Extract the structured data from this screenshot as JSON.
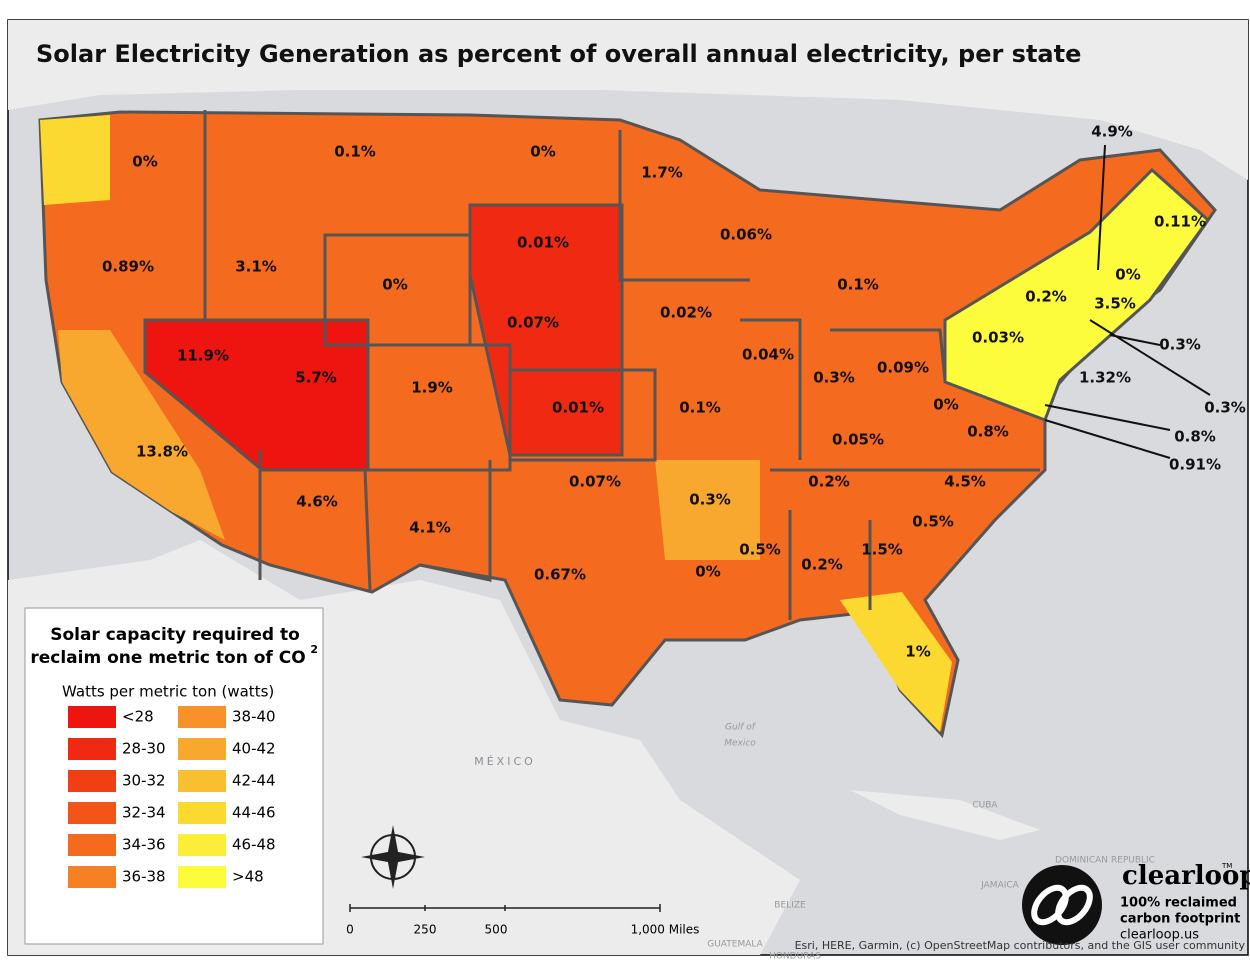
{
  "title": "Solar Electricity Generation as percent of overall annual electricity,  per state",
  "state_labels": [
    "0%",
    "0.1%",
    "0%",
    "1.7%",
    "4.9%",
    "0.11%",
    "0.01%",
    "0.06%",
    "0.89%",
    "3.1%",
    "0%",
    "0%",
    "0.2%",
    "3.5%",
    "0.1%",
    "0.07%",
    "0.02%",
    "0.03%",
    "0.3%",
    "11.9%",
    "5.7%",
    "1.9%",
    "0.04%",
    "0.3%",
    "0.09%",
    "1.32%",
    "0.3%",
    "0.01%",
    "0.1%",
    "0%",
    "0.8%",
    "0.8%",
    "0.91%",
    "13.8%",
    "0.05%",
    "0.07%",
    "0.2%",
    "4.5%",
    "4.6%",
    "0.3%",
    "0.5%",
    "4.1%",
    "1.5%",
    "0.5%",
    "0.2%",
    "0%",
    "0.67%",
    "1%"
  ],
  "legend": {
    "title_lines": [
      "Solar capacity required to",
      "reclaim one metric ton of CO"
    ],
    "title_sup": "2",
    "subtitle": "Watts per metric ton (watts)",
    "items": [
      {
        "label": "<28",
        "color": "#ee1410"
      },
      {
        "label": "28-30",
        "color": "#f02a12"
      },
      {
        "label": "30-32",
        "color": "#f13e14"
      },
      {
        "label": "32-34",
        "color": "#f35418"
      },
      {
        "label": "34-36",
        "color": "#f46a1e"
      },
      {
        "label": "36-38",
        "color": "#f68024"
      },
      {
        "label": "38-40",
        "color": "#f7922a"
      },
      {
        "label": "40-42",
        "color": "#f8a82e"
      },
      {
        "label": "42-44",
        "color": "#fabf30"
      },
      {
        "label": "44-46",
        "color": "#fbd930"
      },
      {
        "label": "46-48",
        "color": "#fcee38"
      },
      {
        "label": ">48",
        "color": "#fcfc3c"
      }
    ]
  },
  "scale_bar": [
    "0",
    "250",
    "500",
    "1,000 Miles"
  ],
  "places": [
    "MÉXICO",
    "Gulf of",
    "Mexico",
    "CUBA",
    "BELIZE",
    "GUATEMALA",
    "HONDURAS",
    "DOMINICAN REPUBLIC",
    "JAMAICA"
  ],
  "logo": {
    "name": "clearloop",
    "tm": "TM",
    "line1": "100% reclaimed",
    "line2": "carbon footprint",
    "url": "clearloop.us"
  },
  "attribution": "Esri, HERE, Garmin, (c) OpenStreetMap contributors, and the GIS user community"
}
